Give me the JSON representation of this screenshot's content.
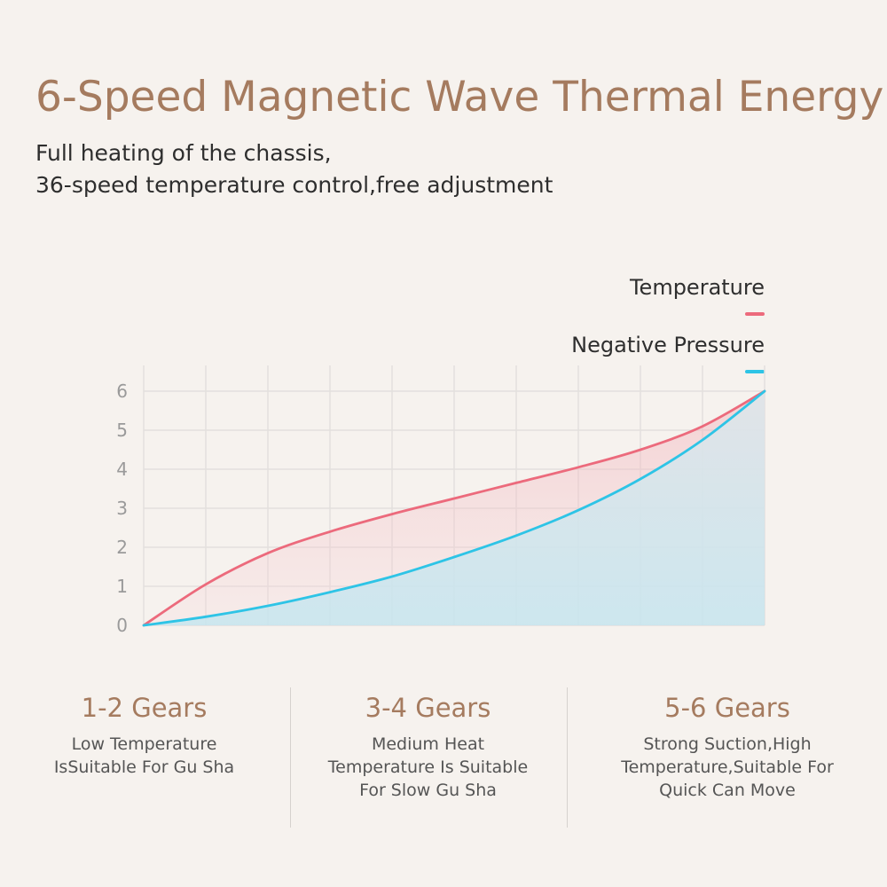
{
  "header": {
    "title": "6-Speed Magnetic Wave Thermal Energy",
    "subtitle_line1": "Full heating of the chassis,",
    "subtitle_line2": "36-speed temperature control,free adjustment"
  },
  "colors": {
    "title": "#a57b5f",
    "temperature": "#ec6a7c",
    "negative_pressure": "#2ec4e6",
    "grid": "#e3e0dd",
    "tick_label": "#9a9a9a"
  },
  "chart_data": {
    "type": "area",
    "ylim": [
      0,
      6
    ],
    "xlim": [
      0,
      10
    ],
    "yticks": [
      "0",
      "1",
      "2",
      "3",
      "4",
      "5",
      "6"
    ],
    "grid": true,
    "legend_position": "top-right",
    "series": [
      {
        "name": "Temperature",
        "x": [
          0,
          1,
          2,
          3,
          4,
          5,
          6,
          7,
          8,
          9,
          10
        ],
        "y": [
          0,
          1.05,
          1.85,
          2.4,
          2.85,
          3.25,
          3.65,
          4.05,
          4.5,
          5.1,
          6.0
        ]
      },
      {
        "name": "Negative Pressure",
        "x": [
          0,
          1,
          2,
          3,
          4,
          5,
          6,
          7,
          8,
          9,
          10
        ],
        "y": [
          0,
          0.22,
          0.5,
          0.85,
          1.25,
          1.75,
          2.3,
          2.95,
          3.75,
          4.75,
          6.0
        ]
      }
    ]
  },
  "gears": [
    {
      "heading": "1-2 Gears",
      "lines": [
        "Low Temperature",
        "IsSuitable For Gu Sha"
      ]
    },
    {
      "heading": "3-4 Gears",
      "lines": [
        "Medium Heat",
        "Temperature Is Suitable",
        "For Slow Gu Sha"
      ]
    },
    {
      "heading": "5-6 Gears",
      "lines": [
        "Strong Suction,High",
        "Temperature,Suitable For",
        "Quick Can Move"
      ]
    }
  ]
}
